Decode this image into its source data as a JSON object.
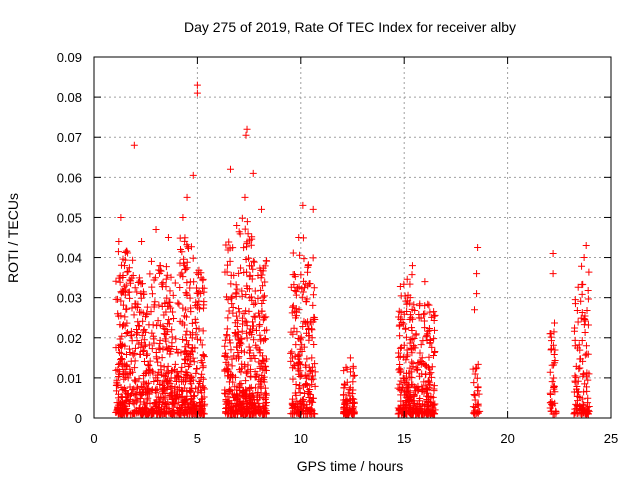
{
  "chart_data": {
    "type": "scatter",
    "title": "Day 275 of 2019, Rate Of TEC Index for receiver alby",
    "xlabel": "GPS time / hours",
    "ylabel": "ROTI / TECUs",
    "xlim": [
      0,
      25
    ],
    "ylim": [
      0,
      0.09
    ],
    "xticks": [
      0,
      5,
      10,
      15,
      20,
      25
    ],
    "xtick_labels": [
      "0",
      "5",
      "10",
      "15",
      "20",
      "25"
    ],
    "yticks": [
      0,
      0.01,
      0.02,
      0.03,
      0.04,
      0.05,
      0.06,
      0.07,
      0.08,
      0.09
    ],
    "ytick_labels": [
      "0",
      "0.01",
      "0.02",
      "0.03",
      "0.04",
      "0.05",
      "0.06",
      "0.07",
      "0.08",
      "0.09"
    ],
    "grid": true,
    "marker": "plus",
    "color": "#ff0000",
    "outliers": [
      [
        1.95,
        0.068
      ],
      [
        4.8,
        0.0605
      ],
      [
        4.5,
        0.055
      ],
      [
        4.3,
        0.05
      ],
      [
        5.0,
        0.083
      ],
      [
        5.0,
        0.081
      ],
      [
        7.4,
        0.072
      ],
      [
        7.35,
        0.0705
      ],
      [
        6.6,
        0.062
      ],
      [
        7.7,
        0.061
      ],
      [
        10.1,
        0.053
      ],
      [
        10.6,
        0.052
      ],
      [
        1.3,
        0.05
      ],
      [
        18.55,
        0.0425
      ],
      [
        18.5,
        0.036
      ],
      [
        18.5,
        0.031
      ],
      [
        18.4,
        0.027
      ],
      [
        22.2,
        0.041
      ],
      [
        22.2,
        0.036
      ],
      [
        23.8,
        0.043
      ],
      [
        23.7,
        0.04
      ],
      [
        12.4,
        0.015
      ],
      [
        15.4,
        0.038
      ],
      [
        16.0,
        0.034
      ],
      [
        2.3,
        0.044
      ],
      [
        3.0,
        0.047
      ],
      [
        9.9,
        0.045
      ],
      [
        3.6,
        0.045
      ],
      [
        8.1,
        0.052
      ],
      [
        1.2,
        0.044
      ],
      [
        6.9,
        0.048
      ],
      [
        7.3,
        0.055
      ]
    ],
    "clusters": [
      {
        "x0": 1.05,
        "x1": 1.9,
        "ymax": 0.042,
        "n": 180
      },
      {
        "x0": 1.9,
        "x1": 2.6,
        "ymax": 0.035,
        "n": 140
      },
      {
        "x0": 2.6,
        "x1": 3.4,
        "ymax": 0.04,
        "n": 150
      },
      {
        "x0": 3.4,
        "x1": 4.1,
        "ymax": 0.038,
        "n": 130
      },
      {
        "x0": 4.1,
        "x1": 4.8,
        "ymax": 0.045,
        "n": 160
      },
      {
        "x0": 4.8,
        "x1": 5.35,
        "ymax": 0.037,
        "n": 110
      },
      {
        "x0": 6.3,
        "x1": 7.0,
        "ymax": 0.045,
        "n": 150
      },
      {
        "x0": 7.0,
        "x1": 7.7,
        "ymax": 0.05,
        "n": 180
      },
      {
        "x0": 7.7,
        "x1": 8.35,
        "ymax": 0.04,
        "n": 160
      },
      {
        "x0": 9.5,
        "x1": 10.1,
        "ymax": 0.042,
        "n": 110
      },
      {
        "x0": 10.1,
        "x1": 10.7,
        "ymax": 0.045,
        "n": 110
      },
      {
        "x0": 12.05,
        "x1": 12.6,
        "ymax": 0.013,
        "n": 90
      },
      {
        "x0": 14.7,
        "x1": 15.5,
        "ymax": 0.036,
        "n": 180
      },
      {
        "x0": 15.5,
        "x1": 16.5,
        "ymax": 0.029,
        "n": 180
      },
      {
        "x0": 18.3,
        "x1": 18.65,
        "ymax": 0.014,
        "n": 30
      },
      {
        "x0": 22.05,
        "x1": 22.35,
        "ymax": 0.024,
        "n": 40
      },
      {
        "x0": 23.2,
        "x1": 23.95,
        "ymax": 0.038,
        "n": 110
      }
    ]
  }
}
